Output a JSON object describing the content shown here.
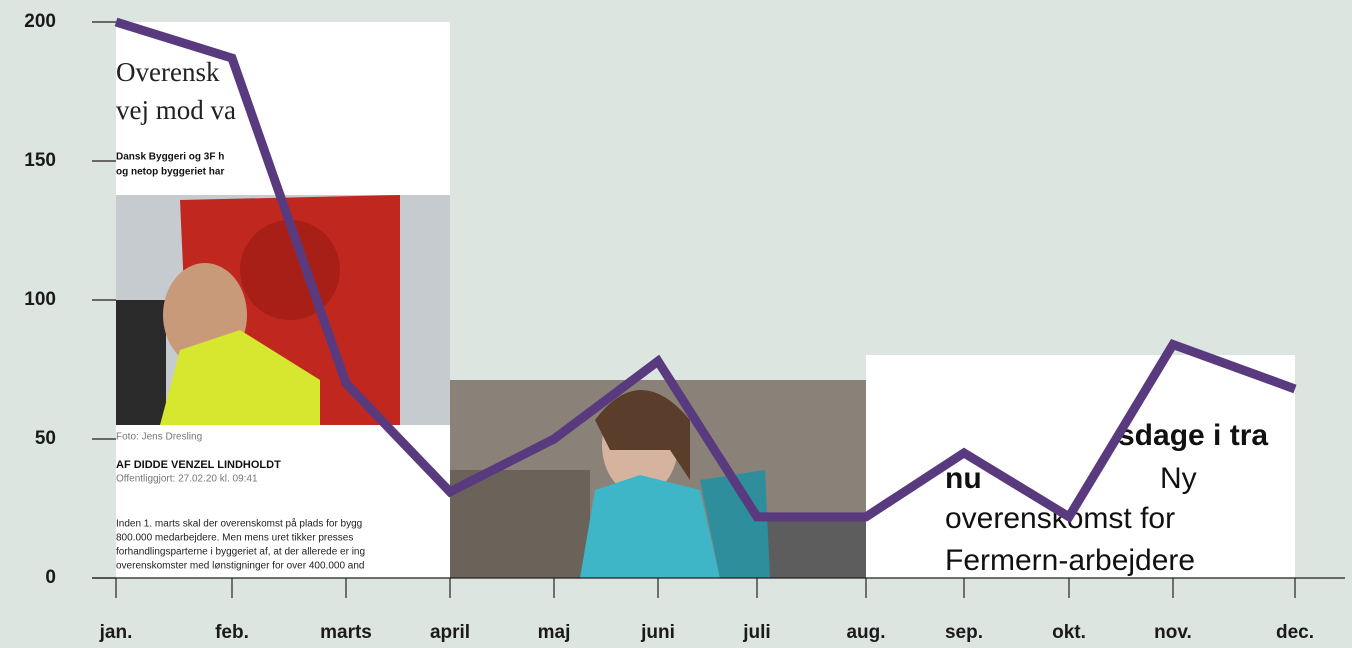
{
  "chart_data": {
    "type": "line",
    "categories": [
      "jan.",
      "feb.",
      "marts",
      "april",
      "maj",
      "juni",
      "juli",
      "aug.",
      "sep.",
      "okt.",
      "nov.",
      "dec."
    ],
    "values": [
      200,
      187,
      70,
      31,
      50,
      78,
      22,
      22,
      45,
      22,
      84,
      68
    ],
    "color": "#5a3a7e",
    "ylim": [
      0,
      200
    ],
    "yticks": [
      0,
      50,
      100,
      150,
      200
    ]
  },
  "clippings": [
    {
      "title": [
        "Overensk",
        "vej mod va"
      ],
      "lead": [
        "Dansk Byggeri og 3F h",
        "og netop byggeriet har"
      ],
      "caption": "Foto: Jens Dresling",
      "byline": "AF DIDDE VENZEL LINDHOLDT",
      "date": "Offentliggjort: 27.02.20 kl. 09:41",
      "body": [
        "Inden 1. marts skal der overenskomst på plads for bygg",
        "800.000 medarbejdere. Men mens uret tikker presses",
        "forhandlingsparterne i byggeriet af, at der allerede er ing",
        "overenskomster med lønstigninger for over 400.000 and"
      ]
    },
    {
      "headline": [
        "sdage i tra",
        "nu",
        "Ny",
        "overenskomst for",
        "Fermern-arbejdere"
      ]
    }
  ]
}
